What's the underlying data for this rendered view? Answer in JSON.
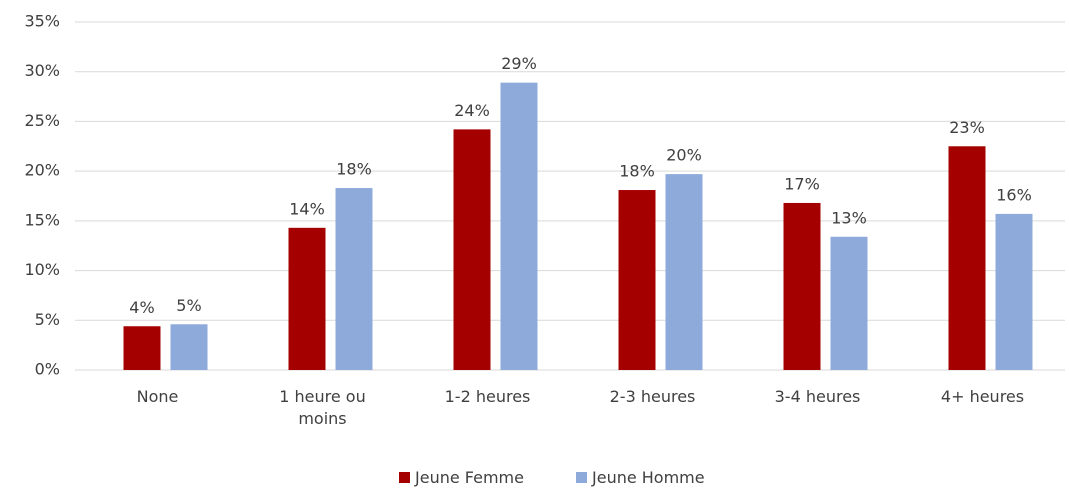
{
  "chart_data": {
    "type": "bar",
    "categories": [
      "None",
      "1 heure ou moins",
      "1-2 heures",
      "2-3 heures",
      "3-4 heures",
      "4+ heures"
    ],
    "series": [
      {
        "name": "Jeune Femme",
        "color": "#a50000",
        "values": [
          4.4,
          14.3,
          24.2,
          18.1,
          16.8,
          22.5
        ],
        "value_labels": [
          "4%",
          "14%",
          "24%",
          "18%",
          "17%",
          "23%"
        ]
      },
      {
        "name": "Jeune Homme",
        "color": "#8eaadb",
        "values": [
          4.6,
          18.3,
          28.9,
          19.7,
          13.4,
          15.7
        ],
        "value_labels": [
          "5%",
          "18%",
          "29%",
          "20%",
          "13%",
          "16%"
        ]
      }
    ],
    "ylim": [
      0,
      35
    ],
    "yticks": [
      {
        "value": 0,
        "label": "0%"
      },
      {
        "value": 5,
        "label": "5%"
      },
      {
        "value": 10,
        "label": "10%"
      },
      {
        "value": 15,
        "label": "15%"
      },
      {
        "value": 20,
        "label": "20%"
      },
      {
        "value": 25,
        "label": "25%"
      },
      {
        "value": 30,
        "label": "30%"
      },
      {
        "value": 35,
        "label": "35%"
      }
    ],
    "grid": true
  }
}
